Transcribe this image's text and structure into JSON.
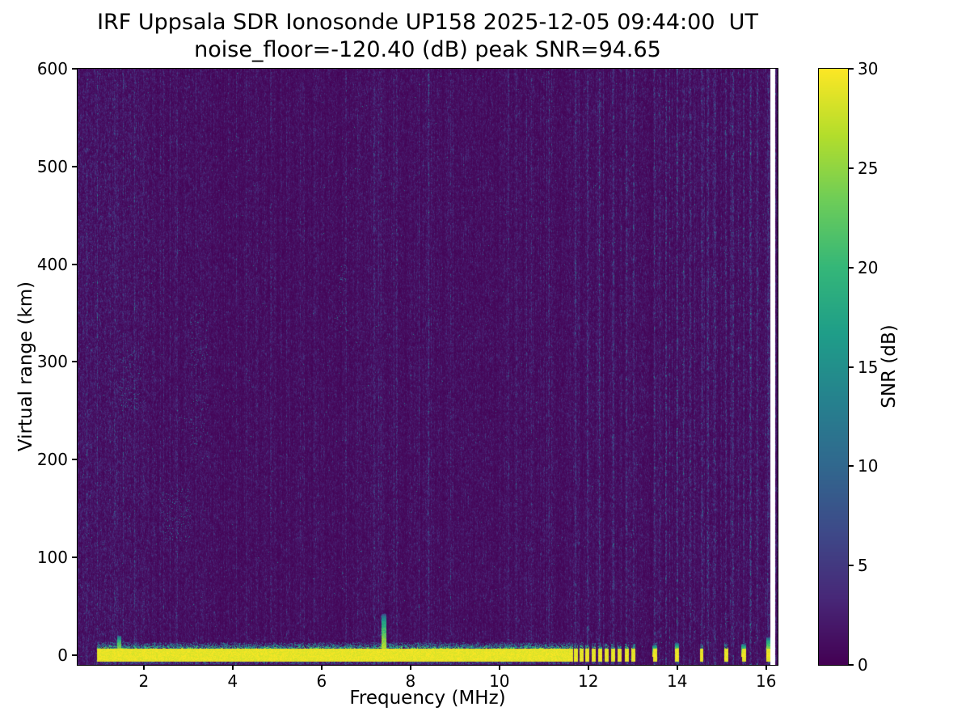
{
  "chart_data": {
    "type": "heatmap",
    "title": "IRF Uppsala SDR Ionosonde UP158 2025-12-05 09:44:00  UT",
    "subtitle": "noise_floor=-120.40 (dB) peak SNR=94.65",
    "station": "IRF Uppsala SDR Ionosonde UP158",
    "timestamp_ut": "2025-12-05 09:44:00",
    "noise_floor_db": -120.4,
    "peak_snr_db": 94.65,
    "xlabel": "Frequency (MHz)",
    "ylabel": "Virtual range (km)",
    "colorbar_label": "SNR (dB)",
    "colormap": "viridis",
    "x_range_mhz": [
      0.51,
      16.26
    ],
    "y_range_km": [
      -10.2,
      600
    ],
    "x_ticks_mhz": [
      2,
      4,
      6,
      8,
      10,
      12,
      14,
      16
    ],
    "y_ticks_km": [
      0,
      100,
      200,
      300,
      400,
      500,
      600
    ],
    "colorbar_range_db": [
      0,
      30
    ],
    "colorbar_ticks_db": [
      0,
      5,
      10,
      15,
      20,
      25,
      30
    ],
    "features": {
      "ground_band": {
        "freq_start_mhz": 0.95,
        "freq_end_mhz": 11.65,
        "center_km": 0,
        "half_width_km": 6.5,
        "fringe_top_km": 13,
        "peak_snr_db": 30
      },
      "ground_dashes_mhz": [
        11.72,
        11.85,
        11.98,
        12.12,
        12.26,
        12.42,
        12.56,
        12.71,
        12.86,
        13.02,
        13.5,
        14.0,
        14.55,
        15.1,
        15.5,
        16.05
      ],
      "tall_spikes": [
        {
          "freq_mhz": 7.4,
          "top_km": 42
        },
        {
          "freq_mhz": 1.45,
          "top_km": 20
        },
        {
          "freq_mhz": 13.5,
          "top_km": 10
        },
        {
          "freq_mhz": 14.0,
          "top_km": 12
        },
        {
          "freq_mhz": 15.5,
          "top_km": 11
        },
        {
          "freq_mhz": 16.05,
          "top_km": 18
        }
      ],
      "rfi_column_stripes_mhz": [
        11.72,
        11.98,
        12.26,
        12.56,
        12.86,
        13.02,
        13.5,
        13.75,
        14.0,
        14.15,
        14.3,
        14.55,
        14.7,
        14.85,
        15.1,
        15.25,
        15.5,
        15.65,
        15.8,
        16.05,
        16.2
      ],
      "faint_stripes_mhz": [
        1.35,
        2.75,
        4.85,
        6.55,
        8.4,
        10.2
      ],
      "echo_speckle_regions": [
        {
          "freq_mhz": [
            1.45,
            1.95
          ],
          "range_km": [
            250,
            310
          ],
          "density": 0.05
        },
        {
          "freq_mhz": [
            2.4,
            3.05
          ],
          "range_km": [
            115,
            170
          ],
          "density": 0.06
        },
        {
          "freq_mhz": [
            3.05,
            3.45
          ],
          "range_km": [
            200,
            360
          ],
          "density": 0.035
        },
        {
          "freq_mhz": [
            6.35,
            6.6
          ],
          "range_km": [
            330,
            400
          ],
          "density": 0.04
        }
      ]
    }
  }
}
